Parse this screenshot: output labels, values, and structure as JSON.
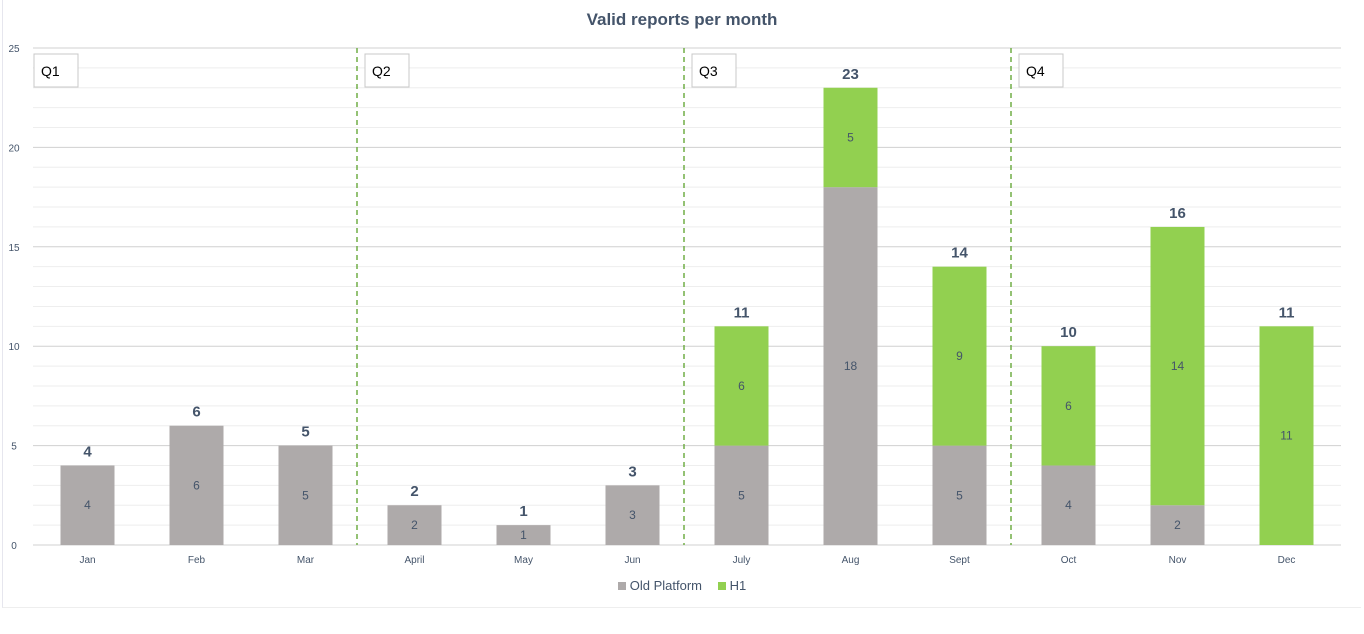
{
  "chart_data": {
    "type": "bar",
    "stacked": true,
    "title": "Valid reports per month",
    "xlabel": "",
    "ylabel": "",
    "ylim": [
      0,
      25
    ],
    "yticks": [
      0,
      5,
      10,
      15,
      20,
      25
    ],
    "grid": true,
    "legend_position": "bottom",
    "categories": [
      "Jan",
      "Feb",
      "Mar",
      "April",
      "May",
      "Jun",
      "July",
      "Aug",
      "Sept",
      "Oct",
      "Nov",
      "Dec"
    ],
    "series": [
      {
        "name": "Old Platform",
        "color": "#aeaaaa",
        "values": [
          4,
          6,
          5,
          2,
          1,
          3,
          5,
          18,
          5,
          4,
          2,
          0
        ]
      },
      {
        "name": "H1",
        "color": "#92d050",
        "values": [
          0,
          0,
          0,
          0,
          0,
          0,
          6,
          5,
          9,
          6,
          14,
          11
        ]
      }
    ],
    "totals": [
      4,
      6,
      5,
      2,
      1,
      3,
      11,
      23,
      14,
      10,
      16,
      11
    ],
    "quarters": [
      {
        "label": "Q1",
        "start_index": 0
      },
      {
        "label": "Q2",
        "start_index": 3
      },
      {
        "label": "Q3",
        "start_index": 6
      },
      {
        "label": "Q4",
        "start_index": 9
      }
    ],
    "divider_color": "#70ad47"
  }
}
